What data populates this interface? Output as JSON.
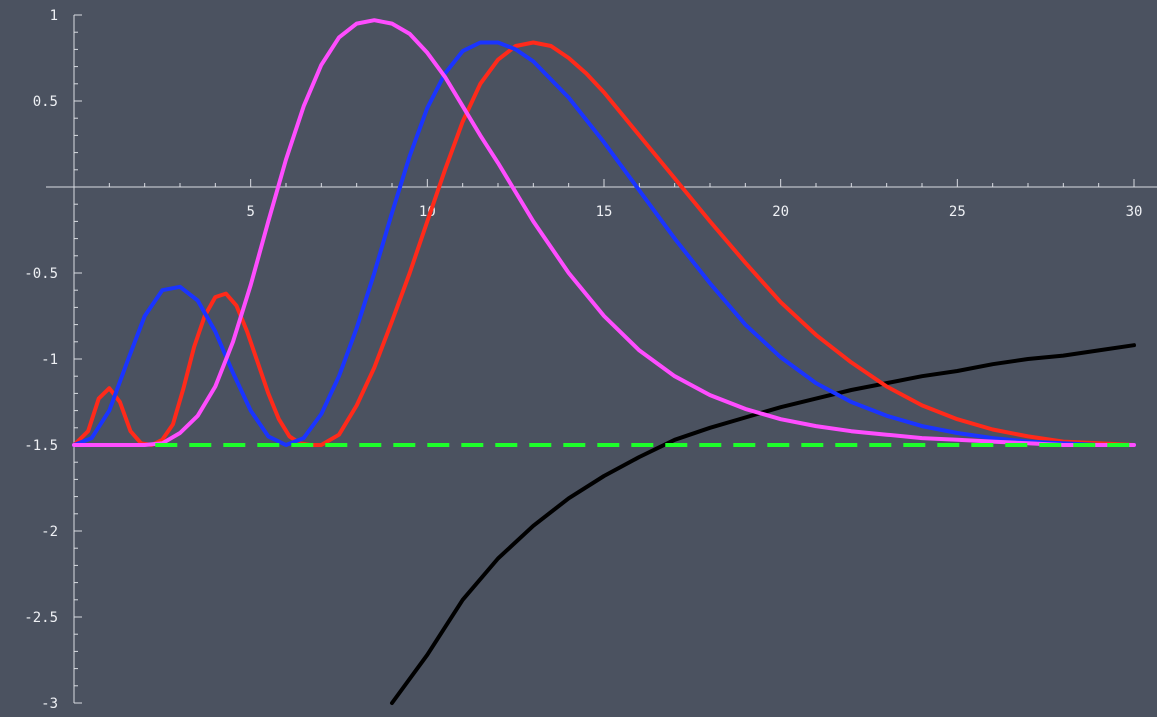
{
  "chart_data": {
    "type": "line",
    "title": "",
    "xlabel": "",
    "ylabel": "",
    "xlim": [
      0,
      30
    ],
    "ylim": [
      -3,
      1
    ],
    "grid": false,
    "x_ticks": [
      {
        "value": 5,
        "label": "5"
      },
      {
        "value": 10,
        "label": "10"
      },
      {
        "value": 15,
        "label": "15"
      },
      {
        "value": 20,
        "label": "20"
      },
      {
        "value": 25,
        "label": "25"
      },
      {
        "value": 30,
        "label": "30"
      }
    ],
    "y_ticks": [
      {
        "value": 1,
        "label": "1"
      },
      {
        "value": 0.5,
        "label": "0.5"
      },
      {
        "value": -0.5,
        "label": "-0.5"
      },
      {
        "value": -1,
        "label": "-1"
      },
      {
        "value": -1.5,
        "label": "-1.5"
      },
      {
        "value": -2,
        "label": "-2"
      },
      {
        "value": -2.5,
        "label": "-2.5"
      },
      {
        "value": -3,
        "label": "-3"
      }
    ],
    "series": [
      {
        "color": "#000000",
        "dashed": false,
        "x": [
          9.0,
          10,
          11,
          12,
          13,
          14,
          15,
          16,
          17,
          18,
          19,
          20,
          21,
          22,
          23,
          24,
          25,
          26,
          27,
          28,
          29,
          30
        ],
        "y": [
          -3.0,
          -2.72,
          -2.4,
          -2.16,
          -1.97,
          -1.81,
          -1.68,
          -1.57,
          -1.47,
          -1.4,
          -1.34,
          -1.28,
          -1.23,
          -1.18,
          -1.14,
          -1.1,
          -1.07,
          -1.03,
          -1.0,
          -0.98,
          -0.95,
          -0.92
        ]
      },
      {
        "color": "#ff2a1a",
        "dashed": false,
        "x": [
          0,
          0.4,
          0.7,
          1.0,
          1.3,
          1.6,
          1.9,
          2.2,
          2.5,
          2.8,
          3.1,
          3.4,
          3.7,
          4.0,
          4.3,
          4.6,
          4.9,
          5.2,
          5.5,
          5.8,
          6.1,
          6.4,
          6.7,
          7.0,
          7.5,
          8,
          8.5,
          9,
          9.5,
          10,
          10.5,
          11,
          11.5,
          12,
          12.5,
          13,
          13.5,
          14,
          14.5,
          15,
          16,
          17,
          18,
          19,
          20,
          21,
          22,
          23,
          24,
          25,
          26,
          27,
          28,
          29,
          30
        ],
        "y": [
          -1.5,
          -1.42,
          -1.23,
          -1.17,
          -1.25,
          -1.42,
          -1.49,
          -1.5,
          -1.47,
          -1.38,
          -1.17,
          -0.93,
          -0.75,
          -0.64,
          -0.62,
          -0.69,
          -0.84,
          -1.02,
          -1.2,
          -1.35,
          -1.45,
          -1.49,
          -1.5,
          -1.5,
          -1.44,
          -1.27,
          -1.05,
          -0.78,
          -0.5,
          -0.2,
          0.1,
          0.38,
          0.6,
          0.74,
          0.82,
          0.84,
          0.82,
          0.75,
          0.66,
          0.55,
          0.3,
          0.05,
          -0.2,
          -0.44,
          -0.67,
          -0.86,
          -1.02,
          -1.16,
          -1.27,
          -1.35,
          -1.41,
          -1.45,
          -1.48,
          -1.49,
          -1.5
        ]
      },
      {
        "color": "#1a34ff",
        "dashed": false,
        "x": [
          0,
          0.5,
          1.0,
          1.5,
          2.0,
          2.5,
          3.0,
          3.5,
          4.0,
          4.5,
          5.0,
          5.5,
          6.0,
          6.5,
          7.0,
          7.5,
          8,
          8.5,
          9,
          9.5,
          10,
          10.5,
          11,
          11.5,
          12,
          12.5,
          13,
          14,
          15,
          16,
          17,
          18,
          19,
          20,
          21,
          22,
          23,
          24,
          25,
          26,
          27,
          28,
          29,
          30
        ],
        "y": [
          -1.5,
          -1.46,
          -1.3,
          -1.02,
          -0.75,
          -0.6,
          -0.58,
          -0.66,
          -0.84,
          -1.08,
          -1.3,
          -1.45,
          -1.5,
          -1.46,
          -1.32,
          -1.1,
          -0.82,
          -0.5,
          -0.15,
          0.18,
          0.46,
          0.66,
          0.79,
          0.84,
          0.84,
          0.8,
          0.73,
          0.52,
          0.26,
          -0.02,
          -0.3,
          -0.56,
          -0.8,
          -0.99,
          -1.14,
          -1.25,
          -1.33,
          -1.39,
          -1.43,
          -1.46,
          -1.48,
          -1.49,
          -1.5,
          -1.5
        ]
      },
      {
        "color": "#ff4dff",
        "dashed": false,
        "x": [
          0,
          1,
          2,
          2.5,
          3,
          3.5,
          4,
          4.5,
          5,
          5.5,
          6,
          6.5,
          7,
          7.5,
          8,
          8.5,
          9,
          9.5,
          10,
          10.5,
          11,
          11.5,
          12,
          13,
          14,
          15,
          16,
          17,
          18,
          19,
          20,
          21,
          22,
          23,
          24,
          25,
          26,
          27,
          28,
          29,
          30
        ],
        "y": [
          -1.5,
          -1.5,
          -1.5,
          -1.49,
          -1.43,
          -1.33,
          -1.16,
          -0.9,
          -0.57,
          -0.2,
          0.16,
          0.47,
          0.71,
          0.87,
          0.95,
          0.97,
          0.95,
          0.89,
          0.78,
          0.64,
          0.47,
          0.3,
          0.14,
          -0.2,
          -0.5,
          -0.75,
          -0.95,
          -1.1,
          -1.21,
          -1.29,
          -1.35,
          -1.39,
          -1.42,
          -1.44,
          -1.46,
          -1.47,
          -1.48,
          -1.49,
          -1.5,
          -1.5,
          -1.5
        ]
      },
      {
        "color": "#1dff2a",
        "dashed": true,
        "x": [
          2.3,
          30
        ],
        "y": [
          -1.5,
          -1.5
        ]
      }
    ]
  }
}
